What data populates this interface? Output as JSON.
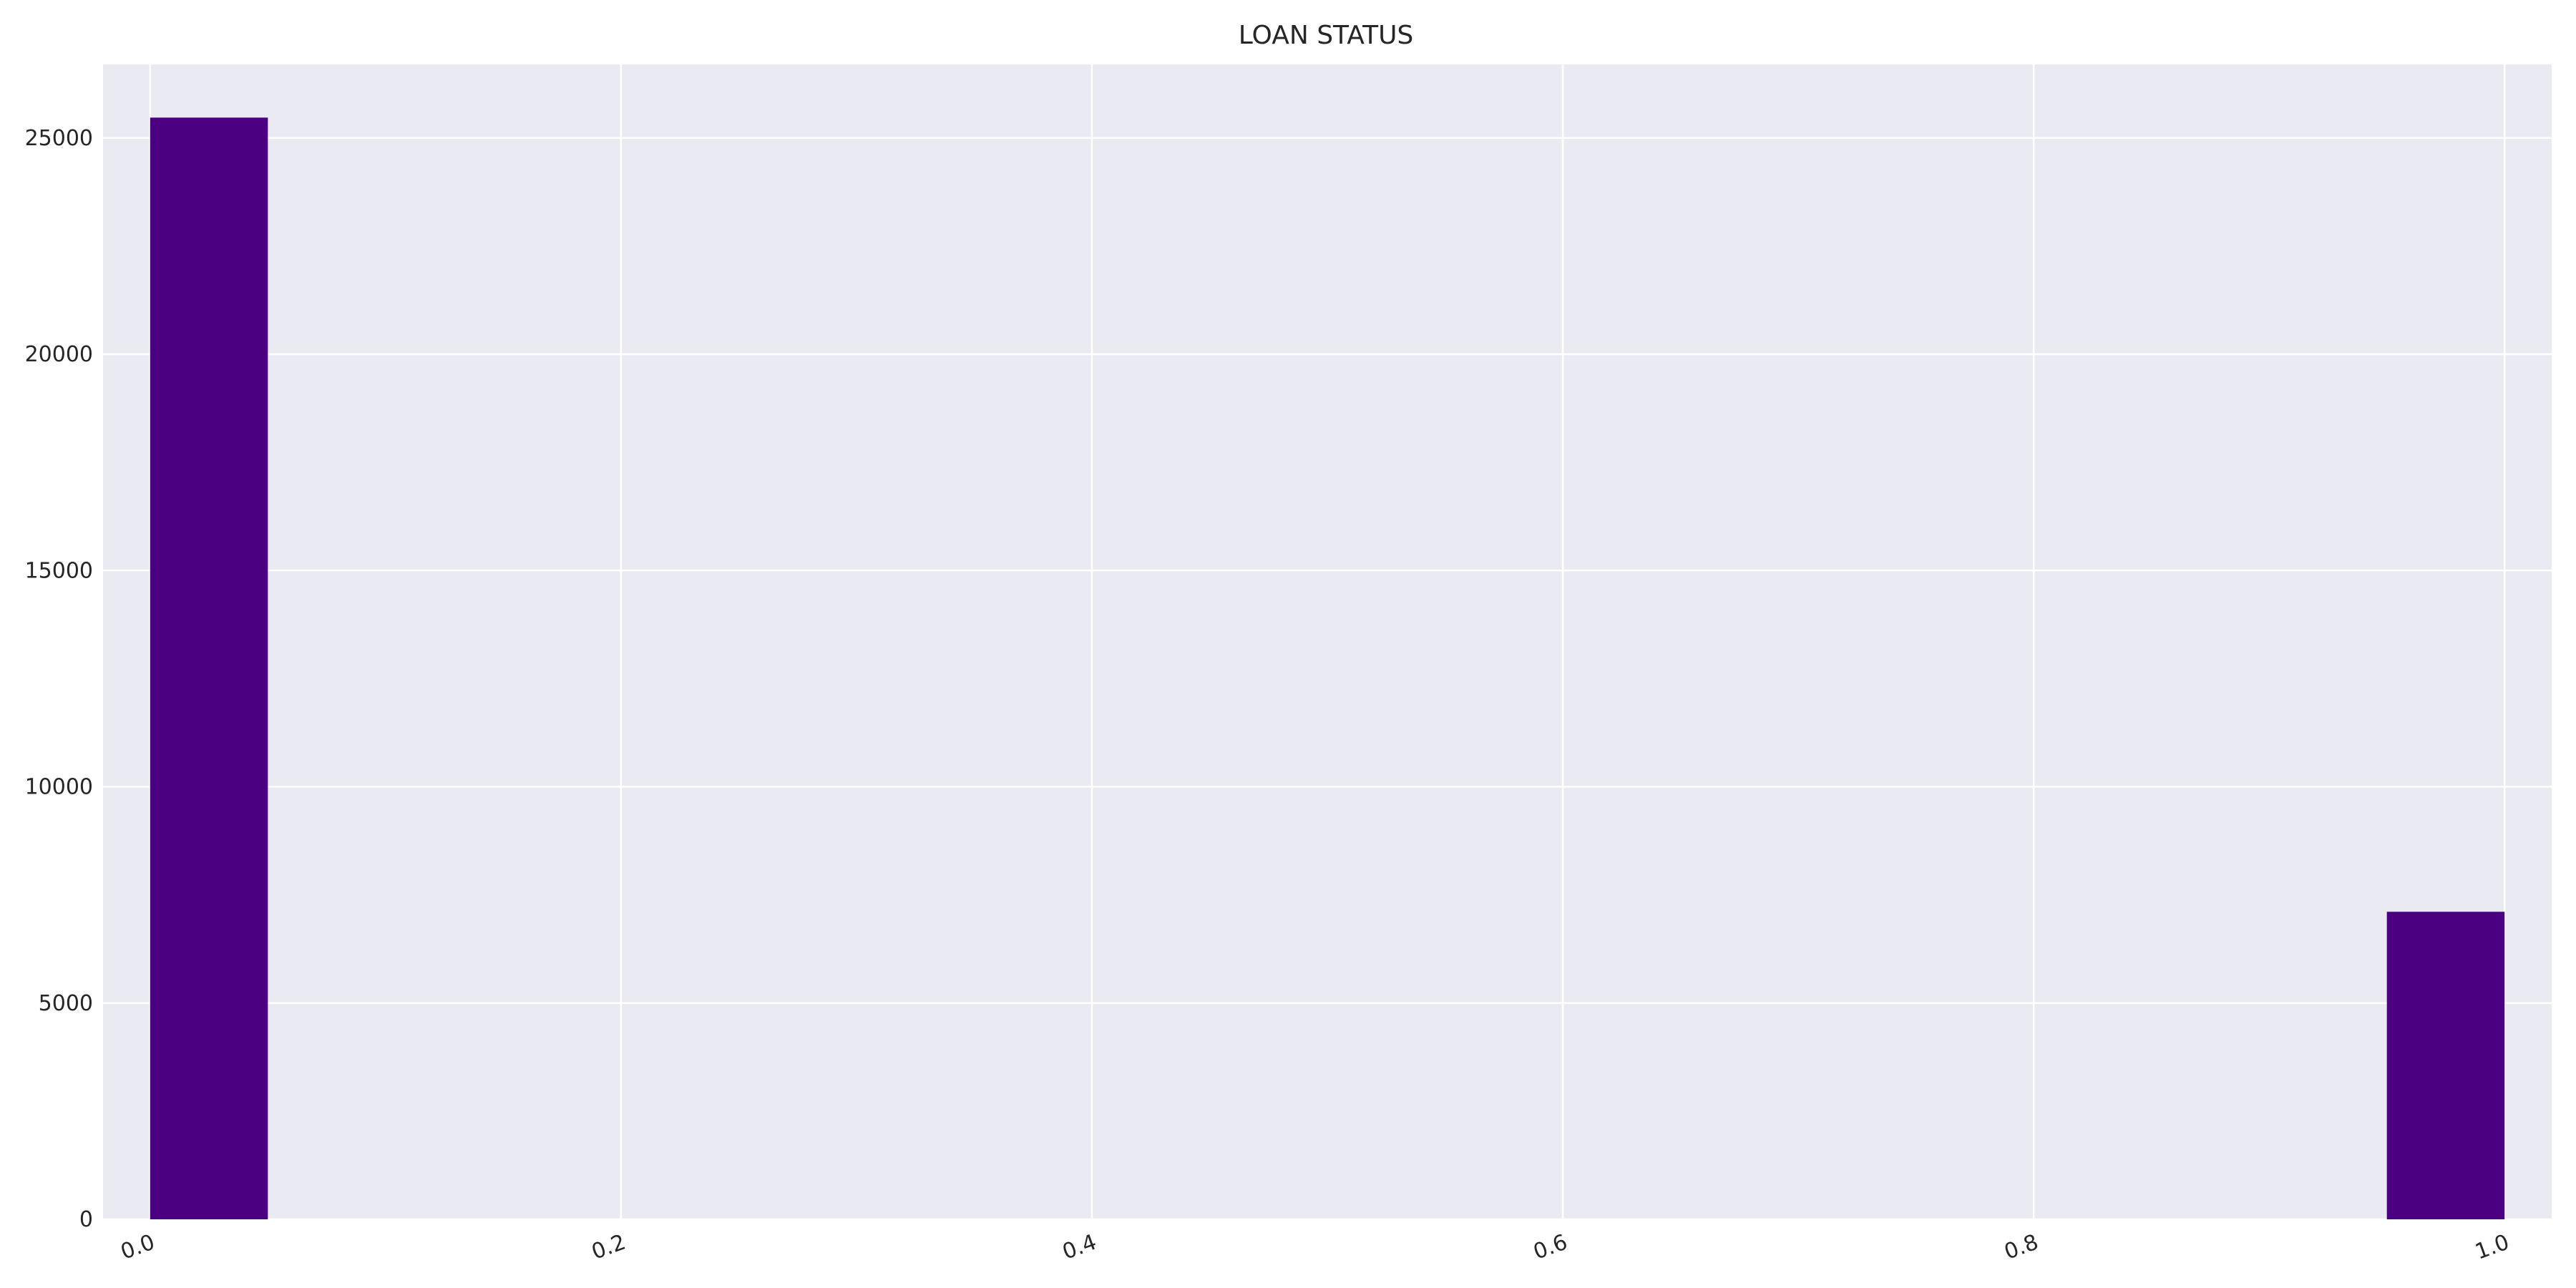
{
  "chart_data": {
    "type": "bar",
    "title": "LOAN STATUS",
    "xlabel": "",
    "ylabel": "",
    "bins": [
      {
        "x0": 0.0,
        "x1": 0.05,
        "value": 25470
      },
      {
        "x0": 0.05,
        "x1": 0.1,
        "value": 0
      },
      {
        "x0": 0.1,
        "x1": 0.15,
        "value": 0
      },
      {
        "x0": 0.15,
        "x1": 0.2,
        "value": 0
      },
      {
        "x0": 0.2,
        "x1": 0.25,
        "value": 0
      },
      {
        "x0": 0.25,
        "x1": 0.3,
        "value": 0
      },
      {
        "x0": 0.3,
        "x1": 0.35,
        "value": 0
      },
      {
        "x0": 0.35,
        "x1": 0.4,
        "value": 0
      },
      {
        "x0": 0.4,
        "x1": 0.45,
        "value": 0
      },
      {
        "x0": 0.45,
        "x1": 0.5,
        "value": 0
      },
      {
        "x0": 0.5,
        "x1": 0.55,
        "value": 0
      },
      {
        "x0": 0.55,
        "x1": 0.6,
        "value": 0
      },
      {
        "x0": 0.6,
        "x1": 0.65,
        "value": 0
      },
      {
        "x0": 0.65,
        "x1": 0.7,
        "value": 0
      },
      {
        "x0": 0.7,
        "x1": 0.75,
        "value": 0
      },
      {
        "x0": 0.75,
        "x1": 0.8,
        "value": 0
      },
      {
        "x0": 0.8,
        "x1": 0.85,
        "value": 0
      },
      {
        "x0": 0.85,
        "x1": 0.9,
        "value": 0
      },
      {
        "x0": 0.9,
        "x1": 0.95,
        "value": 0
      },
      {
        "x0": 0.95,
        "x1": 1.0,
        "value": 7110
      }
    ],
    "xlim": [
      -0.02,
      1.02
    ],
    "ylim": [
      0,
      26700
    ],
    "xticks": [
      "0.0",
      "0.2",
      "0.4",
      "0.6",
      "0.8",
      "1.0"
    ],
    "yticks": [
      "0",
      "5000",
      "10000",
      "15000",
      "20000",
      "25000"
    ],
    "grid": true,
    "legend": "none",
    "colors": {
      "bar": "#4b0082",
      "plot_background": "#eaeaf2",
      "grid": "#ffffff"
    }
  }
}
